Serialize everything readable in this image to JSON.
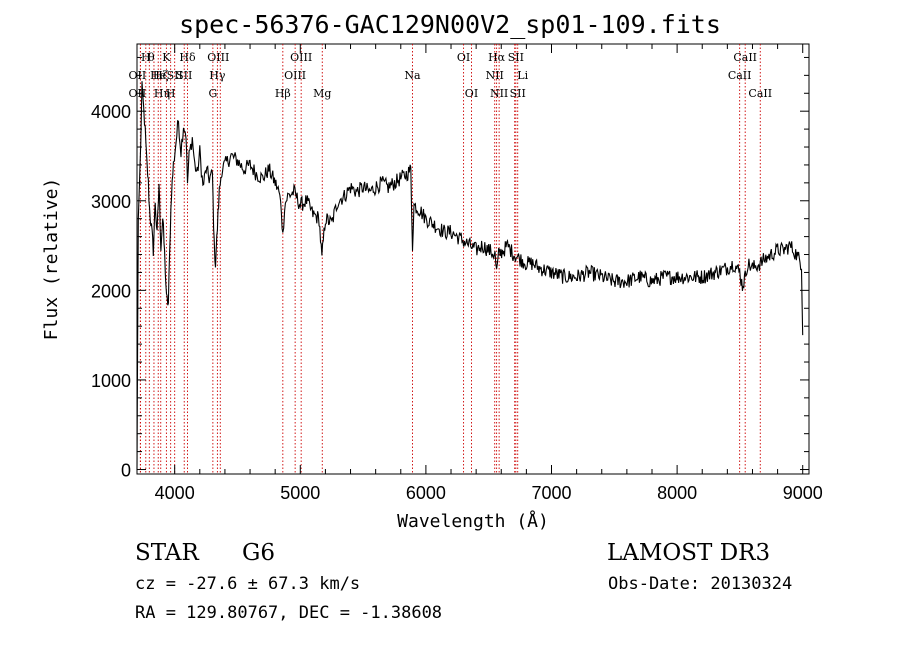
{
  "chart_data": {
    "type": "line",
    "title": "spec-56376-GAC129N00V2_sp01-109.fits",
    "xlabel": "Wavelength (Å)",
    "ylabel": "Flux (relative)",
    "xlim": [
      3700,
      9050
    ],
    "ylim": [
      -50,
      4750
    ],
    "xticks": [
      4000,
      5000,
      6000,
      7000,
      8000,
      9000
    ],
    "yticks": [
      0,
      1000,
      2000,
      3000,
      4000
    ],
    "series": [
      {
        "name": "flux",
        "x": [
          3700,
          3710,
          3725,
          3740,
          3760,
          3775,
          3790,
          3800,
          3815,
          3830,
          3845,
          3860,
          3875,
          3890,
          3905,
          3920,
          3935,
          3950,
          3965,
          3975,
          3990,
          4010,
          4030,
          4050,
          4070,
          4090,
          4102,
          4115,
          4140,
          4160,
          4180,
          4200,
          4225,
          4250,
          4275,
          4300,
          4315,
          4325,
          4340,
          4355,
          4375,
          4400,
          4450,
          4500,
          4550,
          4600,
          4650,
          4700,
          4750,
          4800,
          4830,
          4850,
          4861,
          4875,
          4900,
          4950,
          5000,
          5050,
          5100,
          5150,
          5172,
          5183,
          5200,
          5250,
          5300,
          5350,
          5400,
          5450,
          5500,
          5550,
          5600,
          5650,
          5700,
          5750,
          5800,
          5850,
          5880,
          5893,
          5905,
          5950,
          6000,
          6050,
          6100,
          6150,
          6200,
          6250,
          6300,
          6350,
          6400,
          6450,
          6500,
          6550,
          6563,
          6580,
          6620,
          6650,
          6700,
          6750,
          6800,
          6850,
          6900,
          7000,
          7100,
          7200,
          7300,
          7400,
          7500,
          7600,
          7700,
          7800,
          7900,
          8000,
          8100,
          8200,
          8300,
          8400,
          8450,
          8498,
          8520,
          8542,
          8560,
          8600,
          8662,
          8700,
          8750,
          8800,
          8850,
          8900,
          8950,
          8990,
          9000
        ],
        "values": [
          0,
          2800,
          3400,
          4250,
          3900,
          3500,
          3200,
          2900,
          2700,
          2450,
          3000,
          2600,
          3200,
          2500,
          2800,
          2400,
          1900,
          1850,
          2700,
          3100,
          3400,
          3650,
          3900,
          3550,
          3850,
          3750,
          3200,
          3500,
          3700,
          3400,
          3300,
          3550,
          3150,
          3350,
          3250,
          3300,
          2500,
          2300,
          2700,
          3100,
          3350,
          3400,
          3500,
          3450,
          3350,
          3400,
          3300,
          3250,
          3350,
          3200,
          3100,
          2900,
          2600,
          2950,
          3050,
          3100,
          2950,
          3000,
          2850,
          2800,
          2350,
          2550,
          2800,
          2750,
          3000,
          3050,
          3150,
          3100,
          3150,
          3100,
          3150,
          3200,
          3150,
          3200,
          3250,
          3300,
          3350,
          2500,
          2950,
          2900,
          2800,
          2750,
          2700,
          2650,
          2650,
          2600,
          2550,
          2500,
          2450,
          2500,
          2450,
          2400,
          2200,
          2400,
          2450,
          2500,
          2400,
          2350,
          2300,
          2300,
          2250,
          2200,
          2150,
          2150,
          2200,
          2150,
          2100,
          2100,
          2150,
          2100,
          2150,
          2150,
          2150,
          2150,
          2200,
          2250,
          2300,
          2200,
          2050,
          2150,
          2300,
          2250,
          2300,
          2350,
          2400,
          2450,
          2450,
          2500,
          2400,
          2300,
          1500
        ]
      }
    ],
    "lines": [
      {
        "wl": 3727,
        "label": "OII",
        "row": 1,
        "dx": -3
      },
      {
        "wl": 3727,
        "label": "OII",
        "row": 2,
        "dx": -3
      },
      {
        "wl": 3770,
        "label": "H",
        "row": 0,
        "dx": 0
      },
      {
        "wl": 3798,
        "label": "θ",
        "row": 0,
        "dx": 2
      },
      {
        "wl": 3835,
        "label": "Hη",
        "row": 2,
        "dx": 8
      },
      {
        "wl": 3869,
        "label": "He",
        "row": 1,
        "dx": 0
      },
      {
        "wl": 3889,
        "label": "Hζ",
        "row": 1,
        "dx": 0
      },
      {
        "wl": 3934,
        "label": "K",
        "row": 0,
        "dx": 0
      },
      {
        "wl": 3968,
        "label": "H",
        "row": 2,
        "dx": 0
      },
      {
        "wl": 4000,
        "label": "SII",
        "row": 1,
        "dx": 0
      },
      {
        "wl": 4102,
        "label": "Hδ",
        "row": 0,
        "dx": 0
      },
      {
        "wl": 4076,
        "label": "SII",
        "row": 1,
        "dx": 0
      },
      {
        "wl": 4304,
        "label": "G",
        "row": 2,
        "dx": 0
      },
      {
        "wl": 4340,
        "label": "Hγ",
        "row": 1,
        "dx": 0
      },
      {
        "wl": 4363,
        "label": "OIII",
        "row": 0,
        "dx": -2
      },
      {
        "wl": 4861,
        "label": "Hβ",
        "row": 2,
        "dx": 0
      },
      {
        "wl": 4959,
        "label": "OIII",
        "row": 1,
        "dx": 0
      },
      {
        "wl": 5007,
        "label": "OIII",
        "row": 0,
        "dx": 0
      },
      {
        "wl": 5175,
        "label": "Mg",
        "row": 2,
        "dx": 0
      },
      {
        "wl": 5893,
        "label": "Na",
        "row": 1,
        "dx": 0
      },
      {
        "wl": 6300,
        "label": "OI",
        "row": 0,
        "dx": 0
      },
      {
        "wl": 6363,
        "label": "OI",
        "row": 2,
        "dx": 0
      },
      {
        "wl": 6548,
        "label": "NII",
        "row": 1,
        "dx": 0
      },
      {
        "wl": 6563,
        "label": "Hα",
        "row": 0,
        "dx": 0
      },
      {
        "wl": 6583,
        "label": "NII",
        "row": 2,
        "dx": 0
      },
      {
        "wl": 6707,
        "label": "Li",
        "row": 1,
        "dx": 8
      },
      {
        "wl": 6716,
        "label": "SII",
        "row": 0,
        "dx": 0
      },
      {
        "wl": 6731,
        "label": "SII",
        "row": 2,
        "dx": 0
      },
      {
        "wl": 8498,
        "label": "CaII",
        "row": 1,
        "dx": 0
      },
      {
        "wl": 8542,
        "label": "CaII",
        "row": 0,
        "dx": 0
      },
      {
        "wl": 8662,
        "label": "CaII",
        "row": 2,
        "dx": 0
      }
    ]
  },
  "info": {
    "object_class": "STAR",
    "subclass": "G6",
    "survey": "LAMOST DR3",
    "redshift": "cz = -27.6 ± 67.3 km/s",
    "obs_date": "Obs-Date: 20130324",
    "coords": "RA = 129.80767, DEC =  -1.38608"
  }
}
